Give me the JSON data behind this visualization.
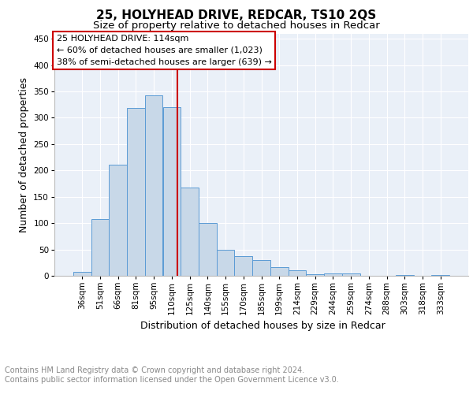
{
  "title1": "25, HOLYHEAD DRIVE, REDCAR, TS10 2QS",
  "title2": "Size of property relative to detached houses in Redcar",
  "xlabel": "Distribution of detached houses by size in Redcar",
  "ylabel": "Number of detached properties",
  "footer": "Contains HM Land Registry data © Crown copyright and database right 2024.\nContains public sector information licensed under the Open Government Licence v3.0.",
  "categories": [
    "36sqm",
    "51sqm",
    "66sqm",
    "81sqm",
    "95sqm",
    "110sqm",
    "125sqm",
    "140sqm",
    "155sqm",
    "170sqm",
    "185sqm",
    "199sqm",
    "214sqm",
    "229sqm",
    "244sqm",
    "259sqm",
    "274sqm",
    "288sqm",
    "303sqm",
    "318sqm",
    "333sqm"
  ],
  "values": [
    7,
    107,
    211,
    318,
    343,
    320,
    168,
    100,
    50,
    37,
    30,
    16,
    10,
    3,
    5,
    5,
    0,
    0,
    2,
    0,
    2
  ],
  "bar_color": "#c8d8e8",
  "bar_edge_color": "#5b9bd5",
  "vline_color": "#cc0000",
  "vline_pos": 5.3,
  "annotation_title": "25 HOLYHEAD DRIVE: 114sqm",
  "annotation_line2": "← 60% of detached houses are smaller (1,023)",
  "annotation_line3": "38% of semi-detached houses are larger (639) →",
  "annotation_box_color": "#cc0000",
  "ylim": [
    0,
    460
  ],
  "yticks": [
    0,
    50,
    100,
    150,
    200,
    250,
    300,
    350,
    400,
    450
  ],
  "plot_bg_color": "#eaf0f8",
  "title1_fontsize": 11,
  "title2_fontsize": 9.5,
  "tick_fontsize": 7.5,
  "ylabel_fontsize": 9,
  "xlabel_fontsize": 9,
  "footer_fontsize": 7,
  "ann_fontsize": 8
}
